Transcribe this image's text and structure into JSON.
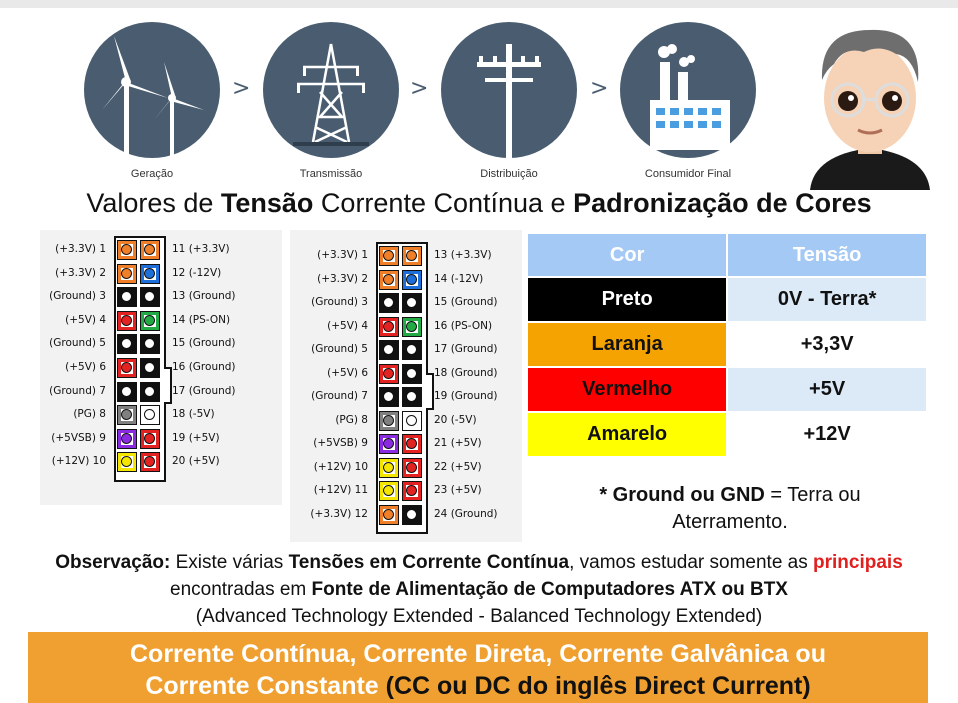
{
  "stages": [
    {
      "label": "Geração",
      "icon": "wind-turbine-icon"
    },
    {
      "label": "Transmissão",
      "icon": "transmission-tower-icon"
    },
    {
      "label": "Distribuição",
      "icon": "utility-pole-icon"
    },
    {
      "label": "Consumidor Final",
      "icon": "factory-icon"
    }
  ],
  "chevron": ">",
  "title": {
    "part1": "Valores de ",
    "bold1": "Tensão",
    "part2": " Corrente Contínua e ",
    "bold2": "Padronização de Cores"
  },
  "connector20": {
    "left": [
      {
        "label": "(+3.3V)  1",
        "color": "#f07f2a"
      },
      {
        "label": "(+3.3V)  2",
        "color": "#f07f2a"
      },
      {
        "label": "(Ground)  3",
        "color": "#111111"
      },
      {
        "label": "(+5V)  4",
        "color": "#e32222"
      },
      {
        "label": "(Ground)  5",
        "color": "#111111"
      },
      {
        "label": "(+5V)  6",
        "color": "#e32222"
      },
      {
        "label": "(Ground)  7",
        "color": "#111111"
      },
      {
        "label": "(PG)  8",
        "color": "#808080"
      },
      {
        "label": "(+5VSB)  9",
        "color": "#8a2be2"
      },
      {
        "label": "(+12V)  10",
        "color": "#f5e600"
      }
    ],
    "right": [
      {
        "label": "11  (+3.3V)",
        "color": "#f07f2a"
      },
      {
        "label": "12  (-12V)",
        "color": "#1e6fd9"
      },
      {
        "label": "13  (Ground)",
        "color": "#111111"
      },
      {
        "label": "14  (PS-ON)",
        "color": "#22aa44"
      },
      {
        "label": "15  (Ground)",
        "color": "#111111"
      },
      {
        "label": "16  (Ground)",
        "color": "#111111"
      },
      {
        "label": "17  (Ground)",
        "color": "#111111"
      },
      {
        "label": "18  (-5V)",
        "color": "#ffffff"
      },
      {
        "label": "19  (+5V)",
        "color": "#e32222"
      },
      {
        "label": "20  (+5V)",
        "color": "#e32222"
      }
    ]
  },
  "connector24": {
    "left": [
      {
        "label": "(+3.3V)  1",
        "color": "#f07f2a"
      },
      {
        "label": "(+3.3V)  2",
        "color": "#f07f2a"
      },
      {
        "label": "(Ground)  3",
        "color": "#111111"
      },
      {
        "label": "(+5V)  4",
        "color": "#e32222"
      },
      {
        "label": "(Ground)  5",
        "color": "#111111"
      },
      {
        "label": "(+5V)  6",
        "color": "#e32222"
      },
      {
        "label": "(Ground)  7",
        "color": "#111111"
      },
      {
        "label": "(PG)  8",
        "color": "#808080"
      },
      {
        "label": "(+5VSB)  9",
        "color": "#8a2be2"
      },
      {
        "label": "(+12V)  10",
        "color": "#f5e600"
      },
      {
        "label": "(+12V)  11",
        "color": "#f5e600"
      },
      {
        "label": "(+3.3V)  12",
        "color": "#f07f2a"
      }
    ],
    "right": [
      {
        "label": "13  (+3.3V)",
        "color": "#f07f2a"
      },
      {
        "label": "14  (-12V)",
        "color": "#1e6fd9"
      },
      {
        "label": "15  (Ground)",
        "color": "#111111"
      },
      {
        "label": "16  (PS-ON)",
        "color": "#22aa44"
      },
      {
        "label": "17  (Ground)",
        "color": "#111111"
      },
      {
        "label": "18  (Ground)",
        "color": "#111111"
      },
      {
        "label": "19  (Ground)",
        "color": "#111111"
      },
      {
        "label": "20  (-5V)",
        "color": "#ffffff"
      },
      {
        "label": "21  (+5V)",
        "color": "#e32222"
      },
      {
        "label": "22  (+5V)",
        "color": "#e32222"
      },
      {
        "label": "23  (+5V)",
        "color": "#e32222"
      },
      {
        "label": "24  (Ground)",
        "color": "#111111"
      }
    ]
  },
  "table": {
    "headers": [
      "Cor",
      "Tensão"
    ],
    "rows": [
      {
        "cor": "Preto",
        "tensao": "0V - Terra*",
        "bg": "#000000",
        "fg": "#ffffff",
        "vbg": "#dce9f7"
      },
      {
        "cor": "Laranja",
        "tensao": "+3,3V",
        "bg": "#f5a300",
        "fg": "#111111",
        "vbg": "#ffffff"
      },
      {
        "cor": "Vermelho",
        "tensao": "+5V",
        "bg": "#ff0000",
        "fg": "#111111",
        "vbg": "#dce9f7"
      },
      {
        "cor": "Amarelo",
        "tensao": "+12V",
        "bg": "#ffff00",
        "fg": "#111111",
        "vbg": "#ffffff"
      }
    ]
  },
  "footnote": {
    "bold": "* Ground ou GND",
    "rest": " = Terra ou Aterramento."
  },
  "observation": {
    "b1": "Observação:",
    "t1": " Existe várias ",
    "b2": "Tensões em Corrente Contínua",
    "t2": ", vamos estudar somente as ",
    "red": "principais",
    "t3": " encontradas em ",
    "b3": "Fonte de Alimentação de Computadores ATX ou BTX",
    "t4": "(Advanced Technology Extended - Balanced Technology Extended)"
  },
  "banner": {
    "line1": "Corrente Contínua, Corrente Direta, Corrente Galvânica ou",
    "line2a": "Corrente Constante ",
    "line2b": "(CC ou DC do inglês Direct Current)"
  }
}
